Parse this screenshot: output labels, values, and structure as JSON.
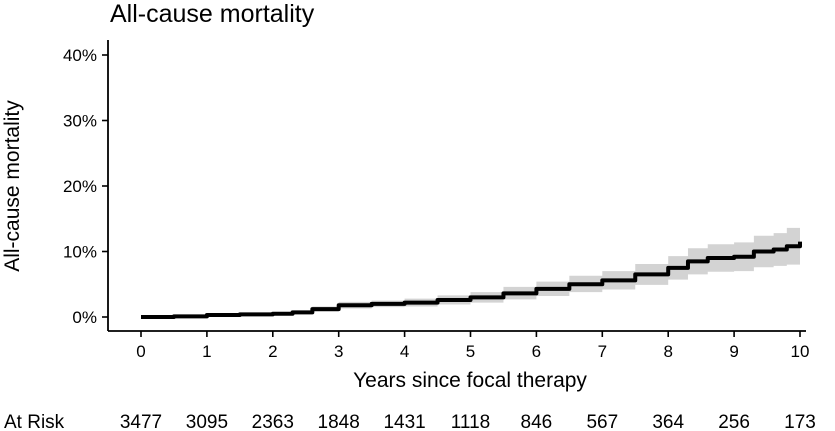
{
  "chart_data": {
    "type": "line",
    "title": "All-cause mortality",
    "xlabel": "Years since focal therapy",
    "ylabel": "All-cause mortality",
    "xlim": [
      0,
      10
    ],
    "ylim": [
      0,
      40
    ],
    "x_ticks": [
      0,
      1,
      2,
      3,
      4,
      5,
      6,
      7,
      8,
      9,
      10
    ],
    "x_tick_labels": [
      "0",
      "1",
      "2",
      "3",
      "4",
      "5",
      "6",
      "7",
      "8",
      "9",
      "10"
    ],
    "y_ticks": [
      0,
      10,
      20,
      30,
      40
    ],
    "y_tick_labels": [
      "0%",
      "10%",
      "20%",
      "30%",
      "40%"
    ],
    "grid": false,
    "series": [
      {
        "color": "#000000",
        "band_color": "#d3d3d3",
        "points": [
          {
            "x": 0,
            "y": 0,
            "lo": 0,
            "hi": 0
          },
          {
            "x": 0.5,
            "y": 0.1,
            "lo": 0.05,
            "hi": 0.15
          },
          {
            "x": 1,
            "y": 0.3,
            "lo": 0.15,
            "hi": 0.45
          },
          {
            "x": 1.5,
            "y": 0.4,
            "lo": 0.2,
            "hi": 0.6
          },
          {
            "x": 2,
            "y": 0.5,
            "lo": 0.25,
            "hi": 0.75
          },
          {
            "x": 2.3,
            "y": 0.7,
            "lo": 0.4,
            "hi": 1.0
          },
          {
            "x": 2.6,
            "y": 1.2,
            "lo": 0.8,
            "hi": 1.6
          },
          {
            "x": 3,
            "y": 1.8,
            "lo": 1.3,
            "hi": 2.3
          },
          {
            "x": 3.5,
            "y": 2.0,
            "lo": 1.5,
            "hi": 2.5
          },
          {
            "x": 4,
            "y": 2.2,
            "lo": 1.6,
            "hi": 2.8
          },
          {
            "x": 4.5,
            "y": 2.6,
            "lo": 1.9,
            "hi": 3.3
          },
          {
            "x": 5,
            "y": 3.0,
            "lo": 2.2,
            "hi": 3.8
          },
          {
            "x": 5.5,
            "y": 3.6,
            "lo": 2.7,
            "hi": 4.6
          },
          {
            "x": 6,
            "y": 4.3,
            "lo": 3.2,
            "hi": 5.4
          },
          {
            "x": 6.5,
            "y": 5.0,
            "lo": 3.8,
            "hi": 6.3
          },
          {
            "x": 7,
            "y": 5.6,
            "lo": 4.2,
            "hi": 7.0
          },
          {
            "x": 7.5,
            "y": 6.5,
            "lo": 4.9,
            "hi": 8.1
          },
          {
            "x": 8,
            "y": 7.5,
            "lo": 5.7,
            "hi": 9.3
          },
          {
            "x": 8.3,
            "y": 8.5,
            "lo": 6.5,
            "hi": 10.5
          },
          {
            "x": 8.6,
            "y": 9.0,
            "lo": 6.9,
            "hi": 11.1
          },
          {
            "x": 9,
            "y": 9.2,
            "lo": 7.0,
            "hi": 11.4
          },
          {
            "x": 9.3,
            "y": 10.0,
            "lo": 7.6,
            "hi": 12.4
          },
          {
            "x": 9.6,
            "y": 10.3,
            "lo": 7.8,
            "hi": 12.8
          },
          {
            "x": 9.8,
            "y": 10.8,
            "lo": 8.0,
            "hi": 13.6
          },
          {
            "x": 10,
            "y": 11.5,
            "lo": 8.6,
            "hi": 14.4
          }
        ]
      }
    ],
    "at_risk": {
      "label": "At Risk",
      "x": [
        0,
        1,
        2,
        3,
        4,
        5,
        6,
        7,
        8,
        9,
        10
      ],
      "values": [
        "3477",
        "3095",
        "2363",
        "1848",
        "1431",
        "1118",
        "846",
        "567",
        "364",
        "256",
        "173"
      ]
    }
  }
}
